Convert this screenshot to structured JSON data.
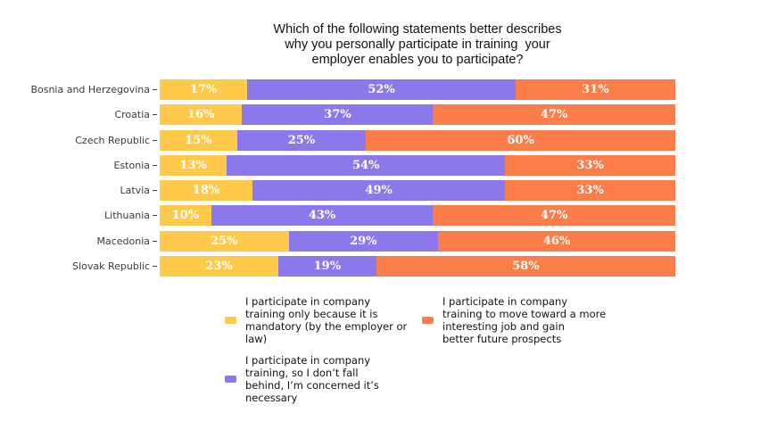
{
  "chart_data": {
    "type": "bar",
    "orientation": "horizontal",
    "stacked": true,
    "title": "Which of the following statements better describes why you personally participate in training  your employer enables you to participate?",
    "title_lines": [
      "Which of the following statements better describes",
      "why you personally participate in training  your",
      "employer enables you to participate?"
    ],
    "categories": [
      "Bosnia and Herzegovina",
      "Croatia",
      "Czech Republic",
      "Estonia",
      "Latvia",
      "Lithuania",
      "Macedonia",
      "Slovak Republic"
    ],
    "series": [
      {
        "name": "I participate in company training only because it is mandatory (by the employer or law)",
        "color": "#FFC94A",
        "values": [
          17,
          16,
          15,
          13,
          18,
          10,
          25,
          23
        ]
      },
      {
        "name": "I participate in company training, so I don’t fall behind, I’m concerned it’s necessary",
        "color": "#8C78EA",
        "values": [
          52,
          37,
          25,
          54,
          49,
          43,
          29,
          19
        ]
      },
      {
        "name": "I participate in company training to move toward a more interesting job and gain better future prospects",
        "color": "#FA7D4A",
        "values": [
          31,
          47,
          60,
          33,
          33,
          47,
          46,
          58
        ]
      }
    ],
    "value_suffix": "%",
    "xlim": [
      0,
      100
    ],
    "grid": false,
    "legend": {
      "position": "bottom",
      "entries": [
        {
          "series_index": 0,
          "lines": [
            "I participate in company",
            "training only because it is",
            "mandatory (by the employer or",
            "law)"
          ]
        },
        {
          "series_index": 1,
          "lines": [
            "I participate in company",
            "training, so I don’t fall",
            "behind, I’m concerned it’s",
            "necessary"
          ]
        },
        {
          "series_index": 2,
          "lines": [
            "I participate in company",
            "training to move toward a more",
            "interesting job and gain",
            "better future prospects"
          ]
        }
      ]
    }
  },
  "colors": {
    "background": "#FFFFFF",
    "title_text": "#111111",
    "tick_label": "#3A3A3A",
    "bar_value_label": "#FFFFFF"
  }
}
